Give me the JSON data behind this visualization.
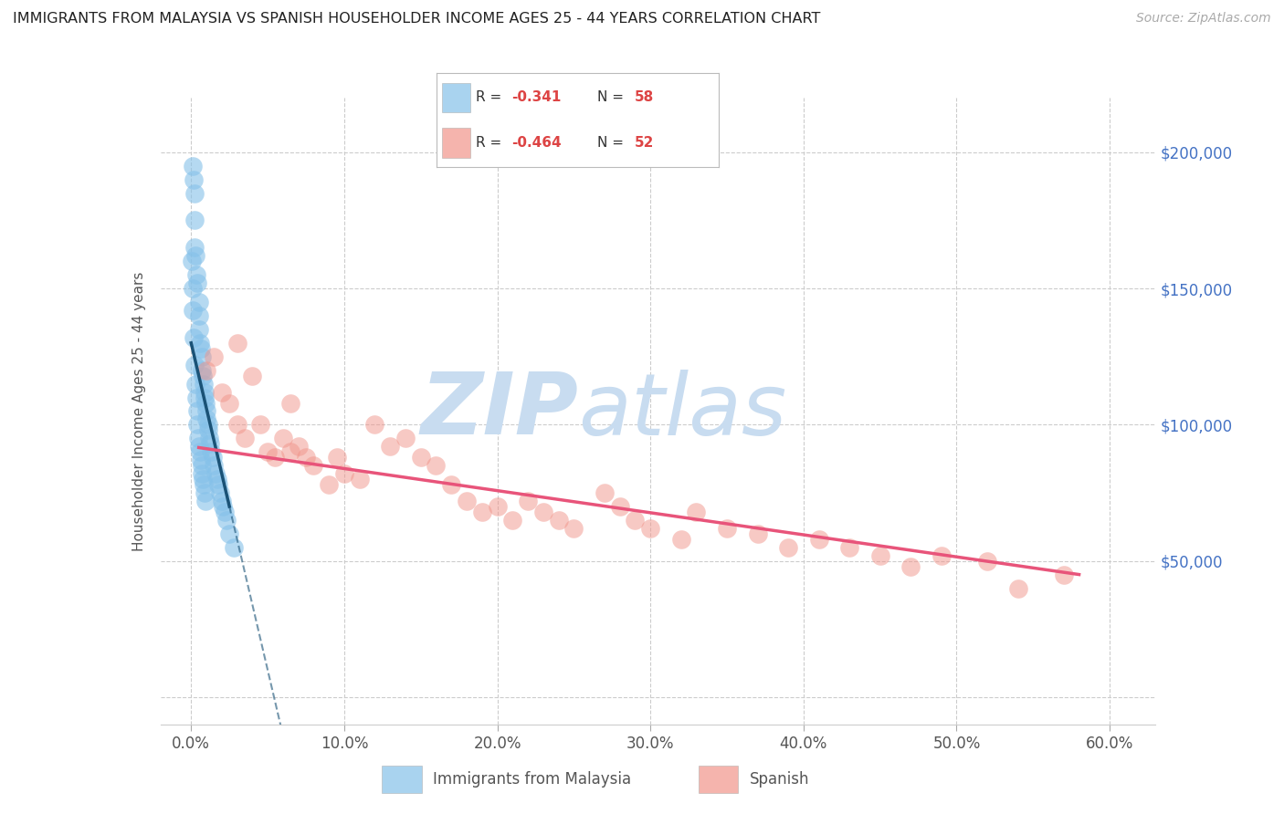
{
  "title": "IMMIGRANTS FROM MALAYSIA VS SPANISH HOUSEHOLDER INCOME AGES 25 - 44 YEARS CORRELATION CHART",
  "source": "Source: ZipAtlas.com",
  "ylabel": "Householder Income Ages 25 - 44 years",
  "xlabel_ticks": [
    "0.0%",
    "10.0%",
    "20.0%",
    "30.0%",
    "40.0%",
    "50.0%",
    "60.0%"
  ],
  "xlabel_vals": [
    0,
    10,
    20,
    30,
    40,
    50,
    60
  ],
  "ylabel_ticks": [
    0,
    50000,
    100000,
    150000,
    200000
  ],
  "xlim": [
    -2,
    63
  ],
  "ylim": [
    -10000,
    220000
  ],
  "malaysia_color": "#85C1E9",
  "spanish_color": "#F1948A",
  "malaysia_line_color": "#1A5276",
  "spanish_line_color": "#E8547A",
  "grid_color": "#CCCCCC",
  "background_color": "#FFFFFF",
  "watermark_zip": "ZIP",
  "watermark_atlas": "atlas",
  "watermark_color": "#C8DCF0",
  "legend_malaysia_text": "R =  -0.341   N = 58",
  "legend_spanish_text": "R =  -0.464   N = 52",
  "malaysia_R": -0.341,
  "malaysia_N": 58,
  "spanish_R": -0.464,
  "spanish_N": 52,
  "malaysia_x": [
    0.1,
    0.15,
    0.2,
    0.2,
    0.25,
    0.3,
    0.35,
    0.4,
    0.5,
    0.5,
    0.55,
    0.6,
    0.65,
    0.7,
    0.7,
    0.75,
    0.8,
    0.85,
    0.9,
    0.95,
    1.0,
    1.0,
    1.1,
    1.1,
    1.2,
    1.25,
    1.3,
    1.4,
    1.5,
    1.6,
    1.7,
    1.8,
    1.9,
    2.0,
    2.1,
    2.2,
    2.3,
    2.5,
    2.8,
    0.05,
    0.08,
    0.12,
    0.18,
    0.22,
    0.28,
    0.32,
    0.38,
    0.42,
    0.48,
    0.52,
    0.58,
    0.62,
    0.68,
    0.72,
    0.78,
    0.82,
    0.88,
    0.92
  ],
  "malaysia_y": [
    195000,
    190000,
    185000,
    175000,
    165000,
    162000,
    155000,
    152000,
    145000,
    140000,
    135000,
    130000,
    128000,
    125000,
    120000,
    118000,
    115000,
    112000,
    110000,
    108000,
    105000,
    102000,
    100000,
    98000,
    95000,
    93000,
    90000,
    88000,
    85000,
    82000,
    80000,
    78000,
    75000,
    72000,
    70000,
    68000,
    65000,
    60000,
    55000,
    160000,
    150000,
    142000,
    132000,
    122000,
    115000,
    110000,
    105000,
    100000,
    95000,
    92000,
    90000,
    87000,
    85000,
    82000,
    80000,
    78000,
    75000,
    72000
  ],
  "spanish_x": [
    1.0,
    1.5,
    2.0,
    2.5,
    3.0,
    3.5,
    4.0,
    4.5,
    5.0,
    5.5,
    6.0,
    6.5,
    7.0,
    7.5,
    8.0,
    9.0,
    9.5,
    10.0,
    11.0,
    12.0,
    13.0,
    14.0,
    15.0,
    16.0,
    17.0,
    18.0,
    19.0,
    20.0,
    21.0,
    22.0,
    23.0,
    24.0,
    25.0,
    27.0,
    28.0,
    29.0,
    30.0,
    32.0,
    33.0,
    35.0,
    37.0,
    39.0,
    41.0,
    43.0,
    45.0,
    47.0,
    49.0,
    52.0,
    54.0,
    57.0,
    3.0,
    6.5
  ],
  "spanish_y": [
    120000,
    125000,
    112000,
    108000,
    100000,
    95000,
    118000,
    100000,
    90000,
    88000,
    95000,
    90000,
    92000,
    88000,
    85000,
    78000,
    88000,
    82000,
    80000,
    100000,
    92000,
    95000,
    88000,
    85000,
    78000,
    72000,
    68000,
    70000,
    65000,
    72000,
    68000,
    65000,
    62000,
    75000,
    70000,
    65000,
    62000,
    58000,
    68000,
    62000,
    60000,
    55000,
    58000,
    55000,
    52000,
    48000,
    52000,
    50000,
    40000,
    45000,
    130000,
    108000
  ]
}
